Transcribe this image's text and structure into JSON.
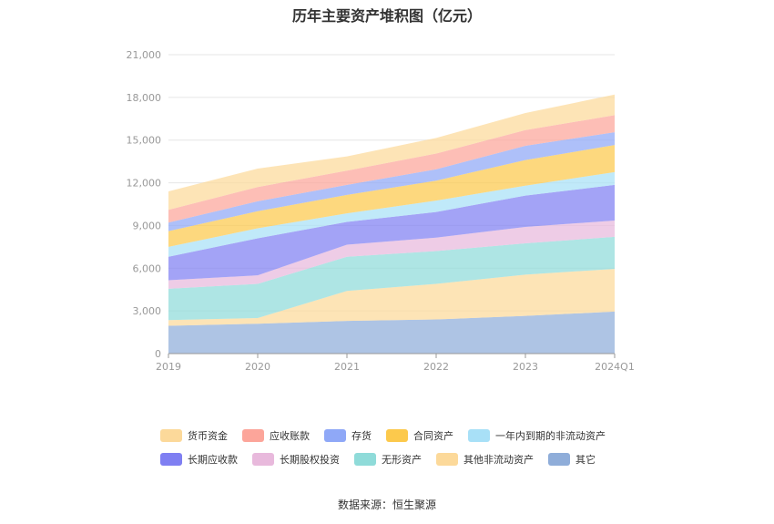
{
  "chart_data": {
    "type": "area",
    "stacked": true,
    "title": "历年主要资产堆积图（亿元）",
    "categories": [
      "2019",
      "2020",
      "2021",
      "2022",
      "2023",
      "2024Q1"
    ],
    "ylim": [
      0,
      21000
    ],
    "yticks": [
      "0",
      "3,000",
      "6,000",
      "9,000",
      "12,000",
      "15,000",
      "18,000",
      "21,000"
    ],
    "ytick_values": [
      0,
      3000,
      6000,
      9000,
      12000,
      15000,
      18000,
      21000
    ],
    "grid": true,
    "legend_position": "bottom",
    "series_bottom_to_top": [
      {
        "name": "其它",
        "color": "#8fadd9",
        "values": [
          1950,
          2100,
          2300,
          2400,
          2650,
          2950
        ]
      },
      {
        "name": "其他非流动资产",
        "color": "#fcd99a",
        "values": [
          400,
          400,
          2100,
          2500,
          2900,
          3000
        ]
      },
      {
        "name": "无形资产",
        "color": "#8fdbd9",
        "values": [
          2200,
          2400,
          2400,
          2300,
          2200,
          2250
        ]
      },
      {
        "name": "长期股权投资",
        "color": "#e8b9dc",
        "values": [
          600,
          600,
          850,
          950,
          1150,
          1150
        ]
      },
      {
        "name": "长期应收款",
        "color": "#7f7ff2",
        "values": [
          1650,
          2600,
          1600,
          1800,
          2200,
          2500
        ]
      },
      {
        "name": "一年内到期的非流动资产",
        "color": "#a8e0f7",
        "values": [
          700,
          700,
          600,
          800,
          700,
          900
        ]
      },
      {
        "name": "合同资产",
        "color": "#fcc94c",
        "values": [
          1100,
          1200,
          1300,
          1400,
          1800,
          1900
        ]
      },
      {
        "name": "存货",
        "color": "#8fa8f7",
        "values": [
          600,
          700,
          700,
          800,
          1000,
          900
        ]
      },
      {
        "name": "应收账款",
        "color": "#fca59a",
        "values": [
          900,
          1000,
          1000,
          1100,
          1100,
          1200
        ]
      },
      {
        "name": "货币资金",
        "color": "#fcd99a",
        "values": [
          1300,
          1300,
          1000,
          1100,
          1200,
          1450
        ]
      }
    ],
    "legend_rows": [
      [
        {
          "name": "货币资金",
          "color": "#fcd99a"
        },
        {
          "name": "应收账款",
          "color": "#fca59a"
        },
        {
          "name": "存货",
          "color": "#8fa8f7"
        },
        {
          "name": "合同资产",
          "color": "#fcc94c"
        },
        {
          "name": "一年内到期的非流动资产",
          "color": "#a8e0f7"
        }
      ],
      [
        {
          "name": "长期应收款",
          "color": "#7f7ff2"
        },
        {
          "name": "长期股权投资",
          "color": "#e8b9dc"
        },
        {
          "name": "无形资产",
          "color": "#8fdbd9"
        },
        {
          "name": "其他非流动资产",
          "color": "#fcd99a"
        },
        {
          "name": "其它",
          "color": "#8fadd9"
        }
      ]
    ]
  },
  "source": "数据来源：恒生聚源"
}
